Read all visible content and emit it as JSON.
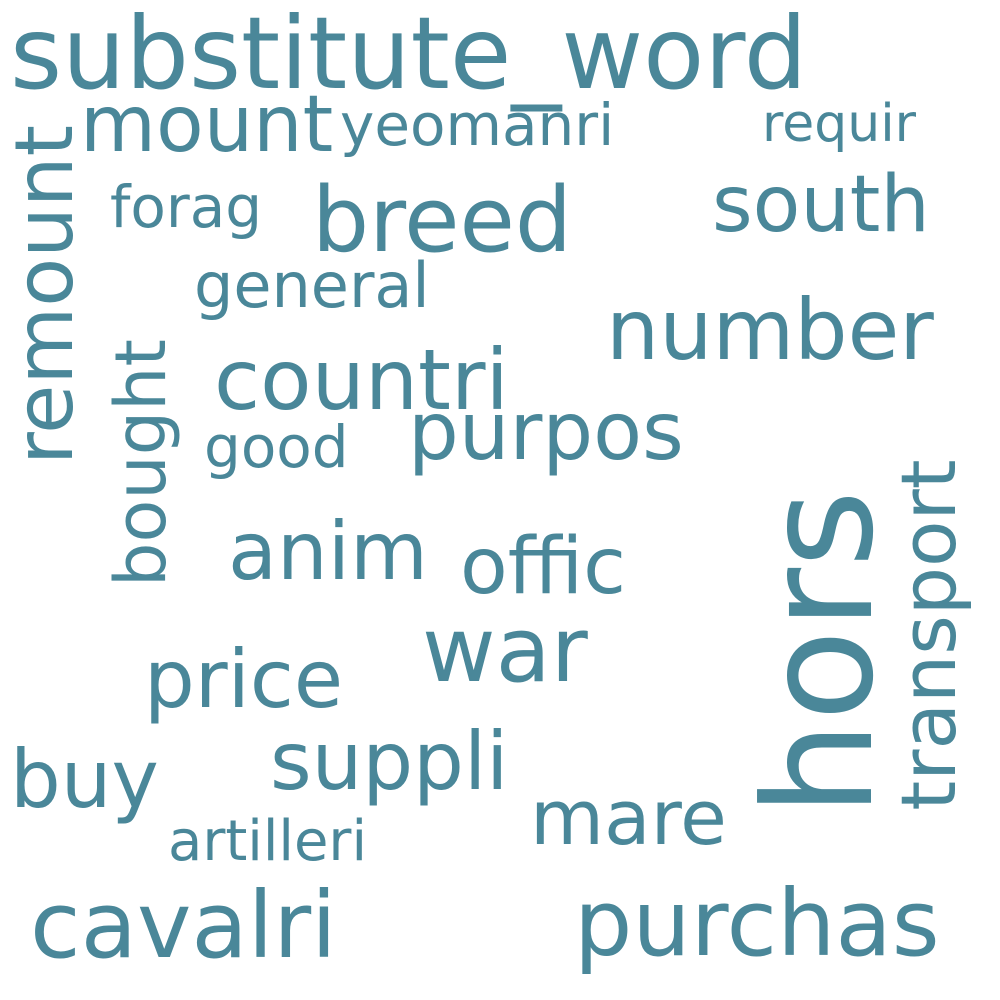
{
  "colors": {
    "background": "#ffffff",
    "word": "#4a8799"
  },
  "words": [
    {
      "text": "hors",
      "weight": 1.0,
      "orientation": "vertical"
    },
    {
      "text": "substitute_word",
      "weight": 0.9,
      "orientation": "horizontal"
    },
    {
      "text": "remount",
      "weight": 0.8,
      "orientation": "vertical"
    },
    {
      "text": "purchas",
      "weight": 0.7,
      "orientation": "horizontal"
    },
    {
      "text": "cavalri",
      "weight": 0.7,
      "orientation": "horizontal"
    },
    {
      "text": "breed",
      "weight": 0.7,
      "orientation": "horizontal"
    },
    {
      "text": "countri",
      "weight": 0.7,
      "orientation": "horizontal"
    },
    {
      "text": "war",
      "weight": 0.7,
      "orientation": "horizontal"
    },
    {
      "text": "number",
      "weight": 0.65,
      "orientation": "horizontal"
    },
    {
      "text": "transport",
      "weight": 0.65,
      "orientation": "vertical"
    },
    {
      "text": "mount",
      "weight": 0.65,
      "orientation": "horizontal"
    },
    {
      "text": "south",
      "weight": 0.6,
      "orientation": "horizontal"
    },
    {
      "text": "suppli",
      "weight": 0.6,
      "orientation": "horizontal"
    },
    {
      "text": "anim",
      "weight": 0.6,
      "orientation": "horizontal"
    },
    {
      "text": "price",
      "weight": 0.6,
      "orientation": "horizontal"
    },
    {
      "text": "purpos",
      "weight": 0.6,
      "orientation": "horizontal"
    },
    {
      "text": "bought",
      "weight": 0.6,
      "orientation": "vertical"
    },
    {
      "text": "offic",
      "weight": 0.6,
      "orientation": "horizontal"
    },
    {
      "text": "buy",
      "weight": 0.6,
      "orientation": "horizontal"
    },
    {
      "text": "mare",
      "weight": 0.6,
      "orientation": "horizontal"
    },
    {
      "text": "yeomanri",
      "weight": 0.5,
      "orientation": "horizontal"
    },
    {
      "text": "general",
      "weight": 0.5,
      "orientation": "horizontal"
    },
    {
      "text": "forag",
      "weight": 0.5,
      "orientation": "horizontal"
    },
    {
      "text": "good",
      "weight": 0.5,
      "orientation": "horizontal"
    },
    {
      "text": "requir",
      "weight": 0.45,
      "orientation": "horizontal"
    },
    {
      "text": "artilleri",
      "weight": 0.45,
      "orientation": "horizontal"
    }
  ]
}
